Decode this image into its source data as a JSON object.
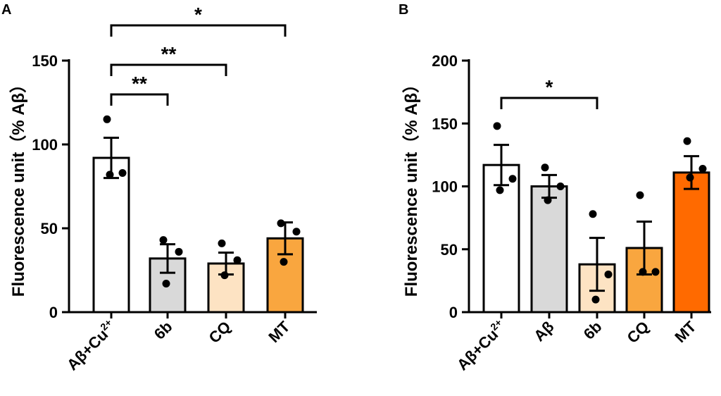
{
  "chart_data": [
    {
      "panel": "A",
      "type": "bar",
      "ylabel": "Fluorescence unit（% Aβ）",
      "ylim": [
        0,
        150
      ],
      "yticks": [
        0,
        50,
        100,
        150
      ],
      "categories": [
        {
          "base": "Aβ+Cu",
          "sup": "2+"
        },
        {
          "base": "6b",
          "sup": ""
        },
        {
          "base": "CQ",
          "sup": ""
        },
        {
          "base": "MT",
          "sup": ""
        }
      ],
      "values": [
        92,
        32,
        29,
        44
      ],
      "errors": [
        12,
        8.5,
        6.5,
        9.5
      ],
      "points": [
        [
          115,
          83,
          82
        ],
        [
          43,
          36,
          17
        ],
        [
          41,
          31,
          22
        ],
        [
          53,
          48,
          30
        ]
      ],
      "colors": [
        "#ffffff",
        "#d9d9d9",
        "#fde3c3",
        "#f9a63f"
      ],
      "significance": [
        {
          "from": 0,
          "to": 1,
          "label": "**",
          "level": 1
        },
        {
          "from": 0,
          "to": 2,
          "label": "**",
          "level": 2
        },
        {
          "from": 0,
          "to": 3,
          "label": "*",
          "level": 3
        }
      ]
    },
    {
      "panel": "B",
      "type": "bar",
      "ylabel": "Fluorescence unit（% Aβ）",
      "ylim": [
        0,
        200
      ],
      "yticks": [
        0,
        50,
        100,
        150,
        200
      ],
      "categories": [
        {
          "base": "Aβ+Cu",
          "sup": "2+"
        },
        {
          "base": "Aβ",
          "sup": ""
        },
        {
          "base": "6b",
          "sup": ""
        },
        {
          "base": "CQ",
          "sup": ""
        },
        {
          "base": "MT",
          "sup": ""
        }
      ],
      "values": [
        117,
        100,
        38,
        51,
        111
      ],
      "errors": [
        16,
        9,
        21,
        21,
        13
      ],
      "points": [
        [
          148,
          106,
          97
        ],
        [
          115,
          100,
          89
        ],
        [
          78,
          30,
          10
        ],
        [
          93,
          32,
          32
        ],
        [
          136,
          114,
          107
        ]
      ],
      "colors": [
        "#ffffff",
        "#d9d9d9",
        "#fde3c3",
        "#f9a63f",
        "#ff6a00"
      ],
      "significance": [
        {
          "from": 0,
          "to": 2,
          "label": "*",
          "level": 1
        }
      ]
    }
  ]
}
